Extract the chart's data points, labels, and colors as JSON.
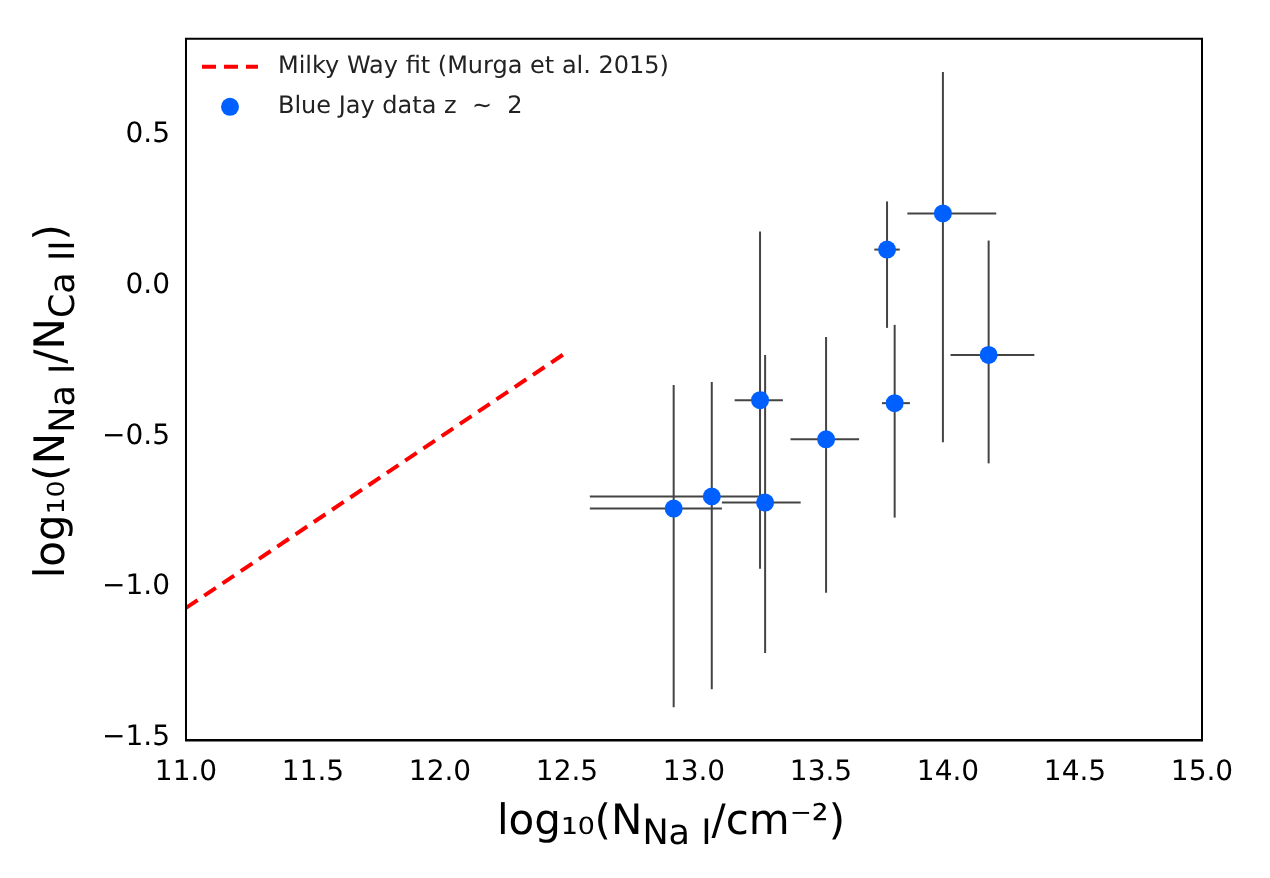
{
  "chart_data": {
    "type": "scatter",
    "xlabel": "log₁₀(N$_{Na I}$/cm⁻²)",
    "ylabel": "log₁₀(N$_{Na I}$/N$_{Ca II}$)",
    "xlim": [
      11,
      15
    ],
    "ylim": [
      -1.51,
      0.82
    ],
    "xticks": [
      {
        "value": 11,
        "label": "11.0"
      },
      {
        "value": 11.5,
        "label": "11.5"
      },
      {
        "value": 12,
        "label": "12.0"
      },
      {
        "value": 12.5,
        "label": "12.5"
      },
      {
        "value": 13,
        "label": "13.0"
      },
      {
        "value": 13.5,
        "label": "13.5"
      },
      {
        "value": 14,
        "label": "14.0"
      },
      {
        "value": 14.5,
        "label": "14.5"
      },
      {
        "value": 15,
        "label": "15.0"
      }
    ],
    "yticks": [
      {
        "value": -1.5,
        "label": "−1.5"
      },
      {
        "value": -1,
        "label": "−1.0"
      },
      {
        "value": -0.5,
        "label": "−0.5"
      },
      {
        "value": 0,
        "label": "0.0"
      },
      {
        "value": 0.5,
        "label": "0.5"
      }
    ],
    "grid": false,
    "legend": "top left",
    "series": [
      {
        "name": "Milky Way fit (Murga et al. 2015)",
        "type": "line",
        "line_style": "dashed",
        "marker": "none",
        "color": "#ff0000",
        "x": [
          11,
          12.5
        ],
        "values": [
          -1.07,
          -0.22
        ]
      },
      {
        "name": "Blue Jay data z  ∼  2",
        "type": "scatter",
        "marker": "circle",
        "color": "#0060ff",
        "x": [
          12.92,
          13.07,
          13.26,
          13.28,
          13.52,
          13.76,
          13.79,
          13.98,
          14.16
        ],
        "values": [
          -0.74,
          -0.7,
          -0.38,
          -0.72,
          -0.51,
          0.12,
          -0.39,
          0.24,
          -0.23
        ],
        "errors": [
          [
            -1.4,
            -0.33
          ],
          [
            -1.34,
            -0.32
          ],
          [
            -0.94,
            0.18
          ],
          [
            -1.22,
            -0.23
          ],
          [
            -1.02,
            -0.17
          ],
          [
            -0.14,
            0.28
          ],
          [
            -0.77,
            -0.13
          ],
          [
            -0.52,
            0.71
          ],
          [
            -0.59,
            0.15
          ]
        ],
        "xerrors": [
          [
            12.59,
            13.11
          ],
          [
            12.59,
            13.27
          ],
          [
            13.16,
            13.35
          ],
          [
            13.11,
            13.42
          ],
          [
            13.38,
            13.65
          ],
          [
            13.71,
            13.81
          ],
          [
            13.74,
            13.85
          ],
          [
            13.84,
            14.19
          ],
          [
            14.01,
            14.34
          ]
        ]
      }
    ]
  }
}
